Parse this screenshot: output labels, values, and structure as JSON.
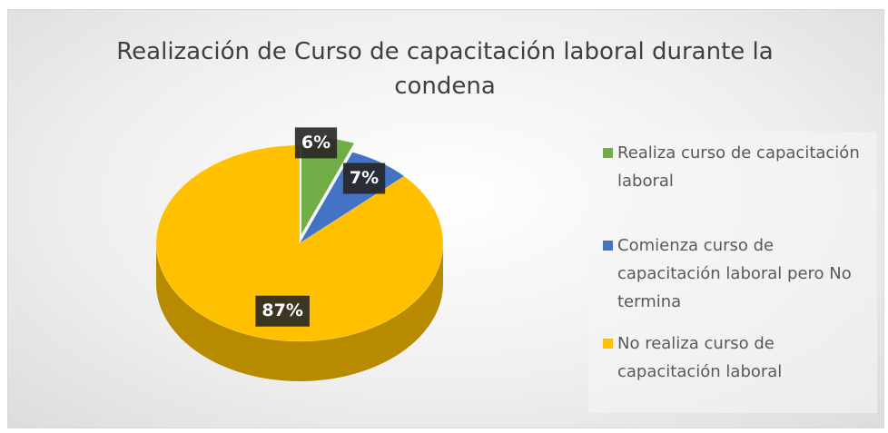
{
  "chart_data": {
    "type": "pie",
    "title": "Realización de Curso de capacitación laboral durante la condena",
    "categories": [
      "Realiza curso de capacitación laboral",
      "Comienza curso de capacitación laboral pero No termina",
      "No realiza curso de capacitación laboral"
    ],
    "values": [
      6,
      7,
      87
    ],
    "value_labels": [
      "6%",
      "7%",
      "87%"
    ],
    "colors": [
      "#70ad47",
      "#4472c4",
      "#ffc000"
    ],
    "legend": "right"
  }
}
